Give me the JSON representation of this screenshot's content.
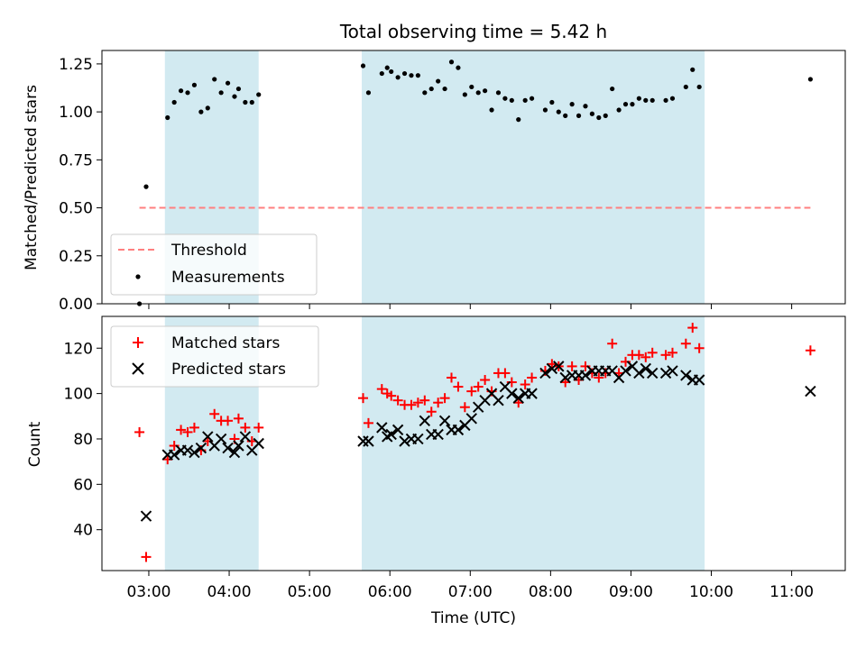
{
  "chart_data": [
    {
      "type": "scatter",
      "title": "Total observing time = 5.42 h",
      "ylabel": "Matched/Predicted stars",
      "xlabel": "",
      "ylim": [
        0,
        1.32
      ],
      "xlim": [
        "02:25",
        "11:40"
      ],
      "yticks": [
        0.0,
        0.25,
        0.5,
        0.75,
        1.0,
        1.25
      ],
      "ytick_labels": [
        "0.00",
        "0.25",
        "0.50",
        "0.75",
        "1.00",
        "1.25"
      ],
      "shaded_intervals": [
        [
          "03:12",
          "04:22"
        ],
        [
          "05:39",
          "09:55"
        ]
      ],
      "shade_color": "#add8e6",
      "legend_position": "lower-left",
      "threshold": {
        "name": "Threshold",
        "y": 0.5,
        "x_range": [
          "02:53",
          "11:14"
        ],
        "color": "#ff7f7f",
        "style": "dashed"
      },
      "series": [
        {
          "name": "Measurements",
          "marker": "dot",
          "color": "#000000",
          "points": [
            [
              "02:53",
              0.0
            ],
            [
              "02:58",
              0.61
            ],
            [
              "03:14",
              0.97
            ],
            [
              "03:19",
              1.05
            ],
            [
              "03:24",
              1.11
            ],
            [
              "03:29",
              1.1
            ],
            [
              "03:34",
              1.14
            ],
            [
              "03:39",
              1.0
            ],
            [
              "03:44",
              1.02
            ],
            [
              "03:49",
              1.17
            ],
            [
              "03:54",
              1.1
            ],
            [
              "03:59",
              1.15
            ],
            [
              "04:04",
              1.08
            ],
            [
              "04:07",
              1.12
            ],
            [
              "04:12",
              1.05
            ],
            [
              "04:17",
              1.05
            ],
            [
              "04:22",
              1.09
            ],
            [
              "05:40",
              1.24
            ],
            [
              "05:44",
              1.1
            ],
            [
              "05:54",
              1.2
            ],
            [
              "05:58",
              1.23
            ],
            [
              "06:01",
              1.21
            ],
            [
              "06:06",
              1.18
            ],
            [
              "06:11",
              1.2
            ],
            [
              "06:16",
              1.19
            ],
            [
              "06:21",
              1.19
            ],
            [
              "06:26",
              1.1
            ],
            [
              "06:31",
              1.12
            ],
            [
              "06:36",
              1.16
            ],
            [
              "06:41",
              1.12
            ],
            [
              "06:46",
              1.26
            ],
            [
              "06:51",
              1.23
            ],
            [
              "06:56",
              1.09
            ],
            [
              "07:01",
              1.13
            ],
            [
              "07:06",
              1.1
            ],
            [
              "07:11",
              1.11
            ],
            [
              "07:16",
              1.01
            ],
            [
              "07:21",
              1.1
            ],
            [
              "07:26",
              1.07
            ],
            [
              "07:31",
              1.06
            ],
            [
              "07:36",
              0.96
            ],
            [
              "07:41",
              1.06
            ],
            [
              "07:46",
              1.07
            ],
            [
              "07:56",
              1.01
            ],
            [
              "08:01",
              1.05
            ],
            [
              "08:06",
              1.0
            ],
            [
              "08:11",
              0.98
            ],
            [
              "08:16",
              1.04
            ],
            [
              "08:21",
              0.98
            ],
            [
              "08:26",
              1.03
            ],
            [
              "08:31",
              0.99
            ],
            [
              "08:36",
              0.97
            ],
            [
              "08:41",
              0.98
            ],
            [
              "08:46",
              1.12
            ],
            [
              "08:51",
              1.01
            ],
            [
              "08:56",
              1.04
            ],
            [
              "09:01",
              1.04
            ],
            [
              "09:06",
              1.07
            ],
            [
              "09:11",
              1.06
            ],
            [
              "09:16",
              1.06
            ],
            [
              "09:26",
              1.06
            ],
            [
              "09:31",
              1.07
            ],
            [
              "09:41",
              1.13
            ],
            [
              "09:46",
              1.22
            ],
            [
              "09:51",
              1.13
            ],
            [
              "11:14",
              1.17
            ]
          ]
        }
      ]
    },
    {
      "type": "scatter",
      "title": "",
      "ylabel": "Count",
      "xlabel": "Time (UTC)",
      "ylim": [
        22,
        134
      ],
      "xlim": [
        "02:25",
        "11:40"
      ],
      "yticks": [
        40,
        60,
        80,
        100,
        120
      ],
      "ytick_labels": [
        "40",
        "60",
        "80",
        "100",
        "120"
      ],
      "xtick_labels": [
        "03:00",
        "04:00",
        "05:00",
        "06:00",
        "07:00",
        "08:00",
        "09:00",
        "10:00",
        "11:00"
      ],
      "shaded_intervals": [
        [
          "03:12",
          "04:22"
        ],
        [
          "05:39",
          "09:55"
        ]
      ],
      "shade_color": "#add8e6",
      "legend_position": "upper-left",
      "series": [
        {
          "name": "Matched stars",
          "marker": "plus",
          "color": "#ff0000",
          "points": [
            [
              "02:53",
              83
            ],
            [
              "02:58",
              28
            ],
            [
              "03:14",
              71
            ],
            [
              "03:19",
              77
            ],
            [
              "03:24",
              84
            ],
            [
              "03:29",
              83
            ],
            [
              "03:34",
              85
            ],
            [
              "03:39",
              75
            ],
            [
              "03:44",
              79
            ],
            [
              "03:49",
              91
            ],
            [
              "03:54",
              88
            ],
            [
              "03:59",
              88
            ],
            [
              "04:04",
              80
            ],
            [
              "04:07",
              89
            ],
            [
              "04:12",
              85
            ],
            [
              "04:17",
              79
            ],
            [
              "04:22",
              85
            ],
            [
              "05:40",
              98
            ],
            [
              "05:44",
              87
            ],
            [
              "05:54",
              102
            ],
            [
              "05:58",
              100
            ],
            [
              "06:01",
              99
            ],
            [
              "06:06",
              97
            ],
            [
              "06:11",
              95
            ],
            [
              "06:16",
              95
            ],
            [
              "06:21",
              96
            ],
            [
              "06:26",
              97
            ],
            [
              "06:31",
              92
            ],
            [
              "06:36",
              96
            ],
            [
              "06:41",
              98
            ],
            [
              "06:46",
              107
            ],
            [
              "06:51",
              103
            ],
            [
              "06:56",
              94
            ],
            [
              "07:01",
              101
            ],
            [
              "07:06",
              103
            ],
            [
              "07:11",
              106
            ],
            [
              "07:16",
              101
            ],
            [
              "07:21",
              109
            ],
            [
              "07:26",
              109
            ],
            [
              "07:31",
              105
            ],
            [
              "07:36",
              96
            ],
            [
              "07:41",
              104
            ],
            [
              "07:46",
              107
            ],
            [
              "07:56",
              110
            ],
            [
              "08:01",
              113
            ],
            [
              "08:06",
              112
            ],
            [
              "08:11",
              105
            ],
            [
              "08:16",
              112
            ],
            [
              "08:21",
              106
            ],
            [
              "08:26",
              112
            ],
            [
              "08:31",
              109
            ],
            [
              "08:36",
              107
            ],
            [
              "08:41",
              109
            ],
            [
              "08:46",
              122
            ],
            [
              "08:51",
              109
            ],
            [
              "08:56",
              114
            ],
            [
              "09:01",
              117
            ],
            [
              "09:06",
              117
            ],
            [
              "09:11",
              116
            ],
            [
              "09:16",
              118
            ],
            [
              "09:26",
              117
            ],
            [
              "09:31",
              118
            ],
            [
              "09:41",
              122
            ],
            [
              "09:46",
              129
            ],
            [
              "09:51",
              120
            ],
            [
              "11:14",
              119
            ]
          ]
        },
        {
          "name": "Predicted stars",
          "marker": "x",
          "color": "#000000",
          "points": [
            [
              "02:58",
              46
            ],
            [
              "03:14",
              73
            ],
            [
              "03:19",
              73
            ],
            [
              "03:24",
              75
            ],
            [
              "03:29",
              75
            ],
            [
              "03:34",
              74
            ],
            [
              "03:39",
              76
            ],
            [
              "03:44",
              81
            ],
            [
              "03:49",
              77
            ],
            [
              "03:54",
              80
            ],
            [
              "03:59",
              76
            ],
            [
              "04:04",
              74
            ],
            [
              "04:07",
              77
            ],
            [
              "04:12",
              81
            ],
            [
              "04:17",
              75
            ],
            [
              "04:22",
              78
            ],
            [
              "05:40",
              79
            ],
            [
              "05:44",
              79
            ],
            [
              "05:54",
              85
            ],
            [
              "05:58",
              81
            ],
            [
              "06:01",
              82
            ],
            [
              "06:06",
              84
            ],
            [
              "06:11",
              79
            ],
            [
              "06:16",
              80
            ],
            [
              "06:21",
              80
            ],
            [
              "06:26",
              88
            ],
            [
              "06:31",
              82
            ],
            [
              "06:36",
              82
            ],
            [
              "06:41",
              88
            ],
            [
              "06:46",
              84
            ],
            [
              "06:51",
              84
            ],
            [
              "06:56",
              86
            ],
            [
              "07:01",
              89
            ],
            [
              "07:06",
              94
            ],
            [
              "07:11",
              97
            ],
            [
              "07:16",
              100
            ],
            [
              "07:21",
              97
            ],
            [
              "07:26",
              103
            ],
            [
              "07:31",
              100
            ],
            [
              "07:36",
              98
            ],
            [
              "07:41",
              100
            ],
            [
              "07:46",
              100
            ],
            [
              "07:56",
              109
            ],
            [
              "08:01",
              111
            ],
            [
              "08:06",
              112
            ],
            [
              "08:11",
              107
            ],
            [
              "08:16",
              108
            ],
            [
              "08:21",
              108
            ],
            [
              "08:26",
              108
            ],
            [
              "08:31",
              110
            ],
            [
              "08:36",
              110
            ],
            [
              "08:41",
              110
            ],
            [
              "08:46",
              110
            ],
            [
              "08:51",
              107
            ],
            [
              "08:56",
              110
            ],
            [
              "09:01",
              112
            ],
            [
              "09:06",
              109
            ],
            [
              "09:11",
              111
            ],
            [
              "09:16",
              109
            ],
            [
              "09:26",
              109
            ],
            [
              "09:31",
              110
            ],
            [
              "09:41",
              108
            ],
            [
              "09:46",
              106
            ],
            [
              "09:51",
              106
            ],
            [
              "11:14",
              101
            ]
          ]
        }
      ]
    }
  ]
}
